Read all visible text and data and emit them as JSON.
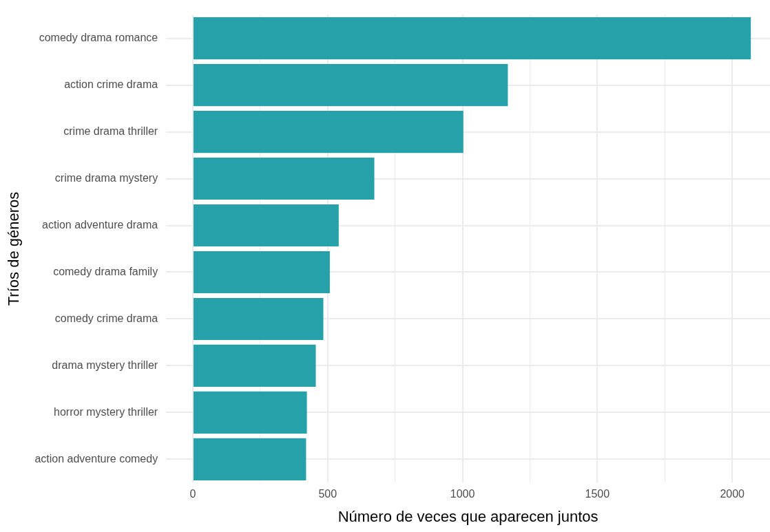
{
  "chart_data": {
    "type": "bar",
    "orientation": "horizontal",
    "xlabel": "Número de veces que aparecen juntos",
    "ylabel": "Tríos de géneros",
    "categories": [
      "comedy drama romance",
      "action crime drama",
      "crime drama thriller",
      "crime drama mystery",
      "action adventure drama",
      "comedy drama family",
      "comedy crime drama",
      "drama mystery thriller",
      "horror mystery thriller",
      "action adventure comedy"
    ],
    "values": [
      2069,
      1168,
      1003,
      673,
      541,
      508,
      484,
      456,
      423,
      420
    ],
    "color": "#26a0a9",
    "xlim": [
      -99,
      2140
    ],
    "xticks": [
      0,
      {
        "value": 250,
        "label": null
      },
      500,
      {
        "value": 750,
        "label": null
      },
      1000,
      {
        "value": 1250,
        "label": null
      },
      1500,
      {
        "value": 1750,
        "label": null
      },
      2000
    ],
    "grid": true,
    "legend": false
  }
}
